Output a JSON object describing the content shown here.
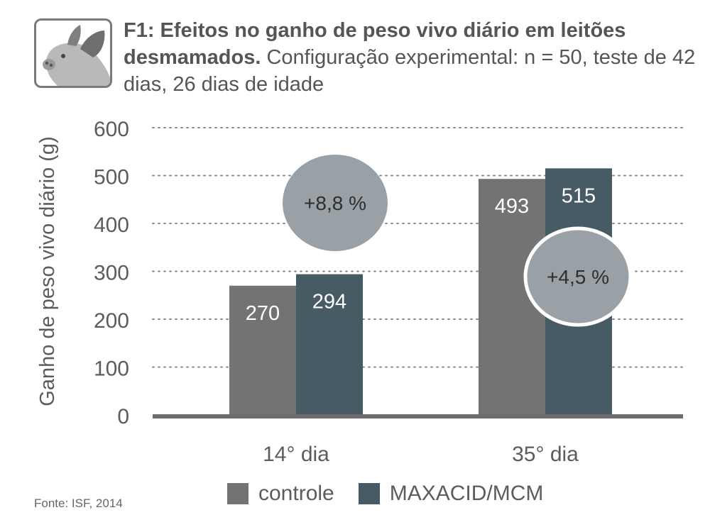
{
  "title": {
    "bold": "F1: Efeitos no ganho de peso vivo diário em leitões desmamados.",
    "rest": " Configuração experimental: n = 50, teste de 42 dias, 26 dias de idade"
  },
  "source": "Fonte: ISF, 2014",
  "colors": {
    "controle": "#737373",
    "maxacid": "#475b64",
    "bubble": "#9aa1a6",
    "axis": "#6d6d6d",
    "grid": "#8a8a8a",
    "text": "#5c5c5c"
  },
  "icon": "pig-icon",
  "chart_data": {
    "type": "bar",
    "title": "F1: Efeitos no ganho de peso vivo diário em leitões desmamados.",
    "xlabel": "",
    "ylabel": "Ganho de peso vivo diário (g)",
    "ylim": [
      0,
      600
    ],
    "yticks": [
      0,
      100,
      200,
      300,
      400,
      500,
      600
    ],
    "grid": true,
    "categories": [
      "14° dia",
      "35° dia"
    ],
    "series": [
      {
        "name": "controle",
        "values": [
          270,
          493
        ]
      },
      {
        "name": "MAXACID/MCM",
        "values": [
          294,
          515
        ]
      }
    ],
    "annotations": [
      "+8,8 %",
      "+4,5 %"
    ],
    "legend_position": "bottom"
  }
}
